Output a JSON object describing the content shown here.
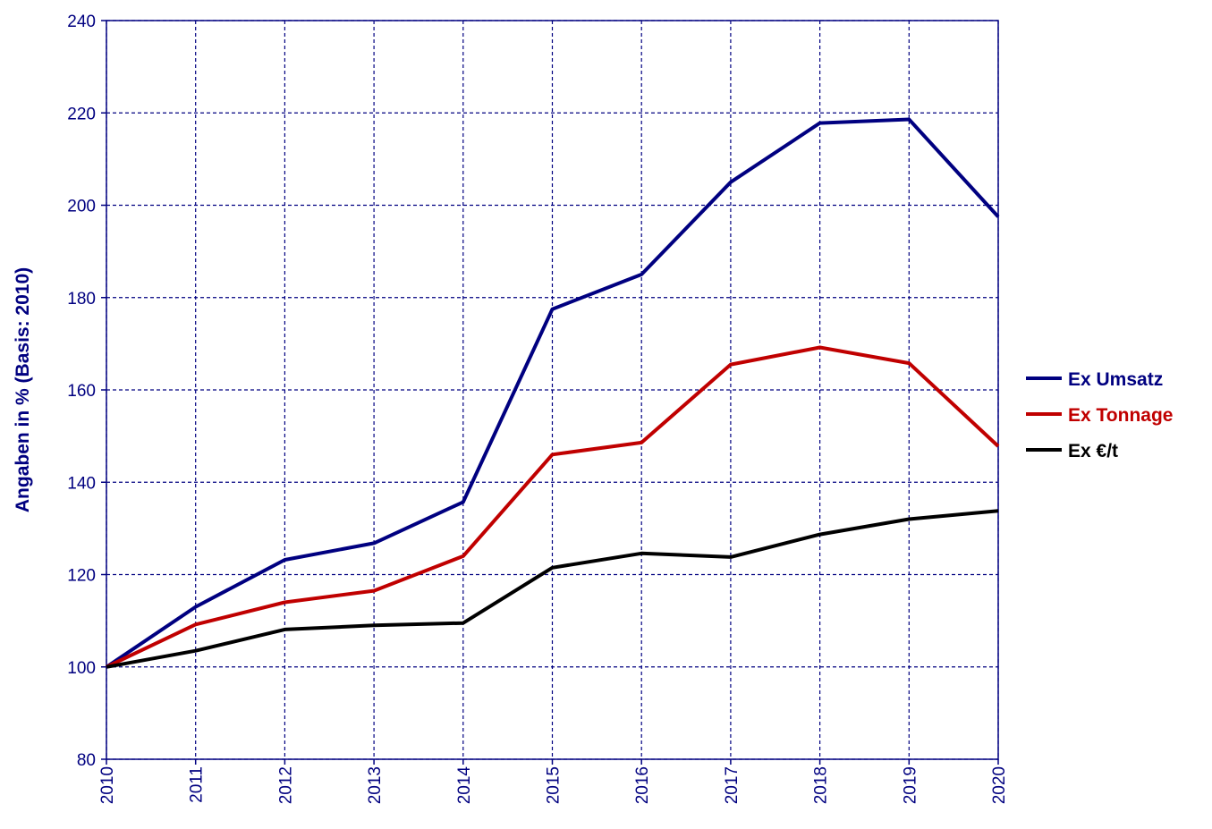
{
  "chart_data": {
    "type": "line",
    "x": [
      "2010",
      "2011",
      "2012",
      "2013",
      "2014",
      "2015",
      "2016",
      "2017",
      "2018",
      "2019",
      "2020"
    ],
    "series": [
      {
        "name": "Ex Umsatz",
        "color": "#000080",
        "values": [
          100,
          113,
          123.2,
          126.8,
          135.7,
          177.5,
          185,
          205,
          217.8,
          218.6,
          197.5
        ]
      },
      {
        "name": "Ex Tonnage",
        "color": "#c00000",
        "values": [
          100,
          109.2,
          114,
          116.5,
          124,
          146,
          148.6,
          165.5,
          169.2,
          165.8,
          147.8
        ]
      },
      {
        "name": "Ex €/t",
        "color": "#000000",
        "values": [
          100,
          103.5,
          108.1,
          109,
          109.5,
          121.5,
          124.6,
          123.8,
          128.7,
          132,
          133.8
        ]
      }
    ],
    "ylabel": "Angaben in % (Basis: 2010)",
    "xlabel": "",
    "title": "",
    "ylim": [
      80,
      240
    ],
    "yticks": [
      "80",
      "100",
      "120",
      "140",
      "160",
      "180",
      "200",
      "220",
      "240"
    ],
    "grid": true,
    "legend": "right"
  }
}
